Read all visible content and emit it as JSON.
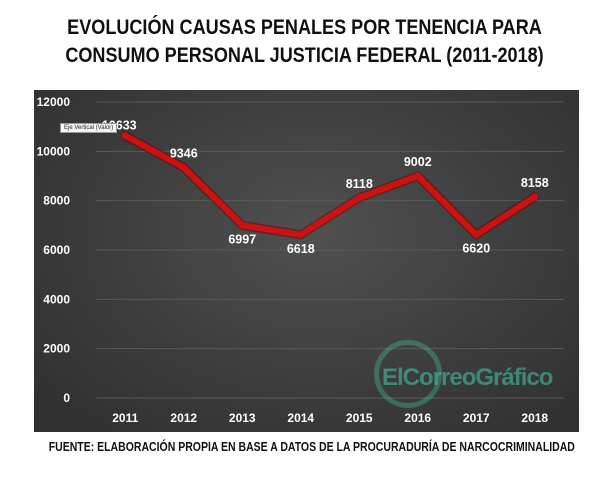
{
  "title": {
    "line1": "EVOLUCIÓN CAUSAS PENALES POR TENENCIA PARA",
    "line2": "CONSUMO PERSONAL JUSTICIA FEDERAL (2011-2018)"
  },
  "footer": "FUENTE: ELABORACIÓN PROPIA EN BASE A DATOS DE LA PROCURADURÍA DE NARCOCRIMINALIDAD",
  "axis_tag": "Eje Vertical (Valor)",
  "watermark": {
    "text": "ElCorreoGráfico"
  },
  "colors": {
    "line": "#cc1111",
    "panel": "#3c3c3c",
    "text": "#ffffff",
    "grid": "#5a5a5a"
  },
  "chart_data": {
    "type": "line",
    "title": "EVOLUCIÓN CAUSAS PENALES POR TENENCIA PARA CONSUMO PERSONAL JUSTICIA FEDERAL (2011-2018)",
    "categories": [
      "2011",
      "2012",
      "2013",
      "2014",
      "2015",
      "2016",
      "2017",
      "2018"
    ],
    "series": [
      {
        "values": [
          10633,
          9346,
          6997,
          6618,
          8118,
          9002,
          6620,
          8158
        ]
      }
    ],
    "ylim": [
      0,
      12000
    ],
    "yticks": [
      "0",
      "2000",
      "4000",
      "6000",
      "8000",
      "10000",
      "12000"
    ],
    "data_labels": [
      "10633",
      "9346",
      "6997",
      "6618",
      "8118",
      "9002",
      "6620",
      "8158"
    ],
    "grid": true,
    "legend": "none"
  }
}
